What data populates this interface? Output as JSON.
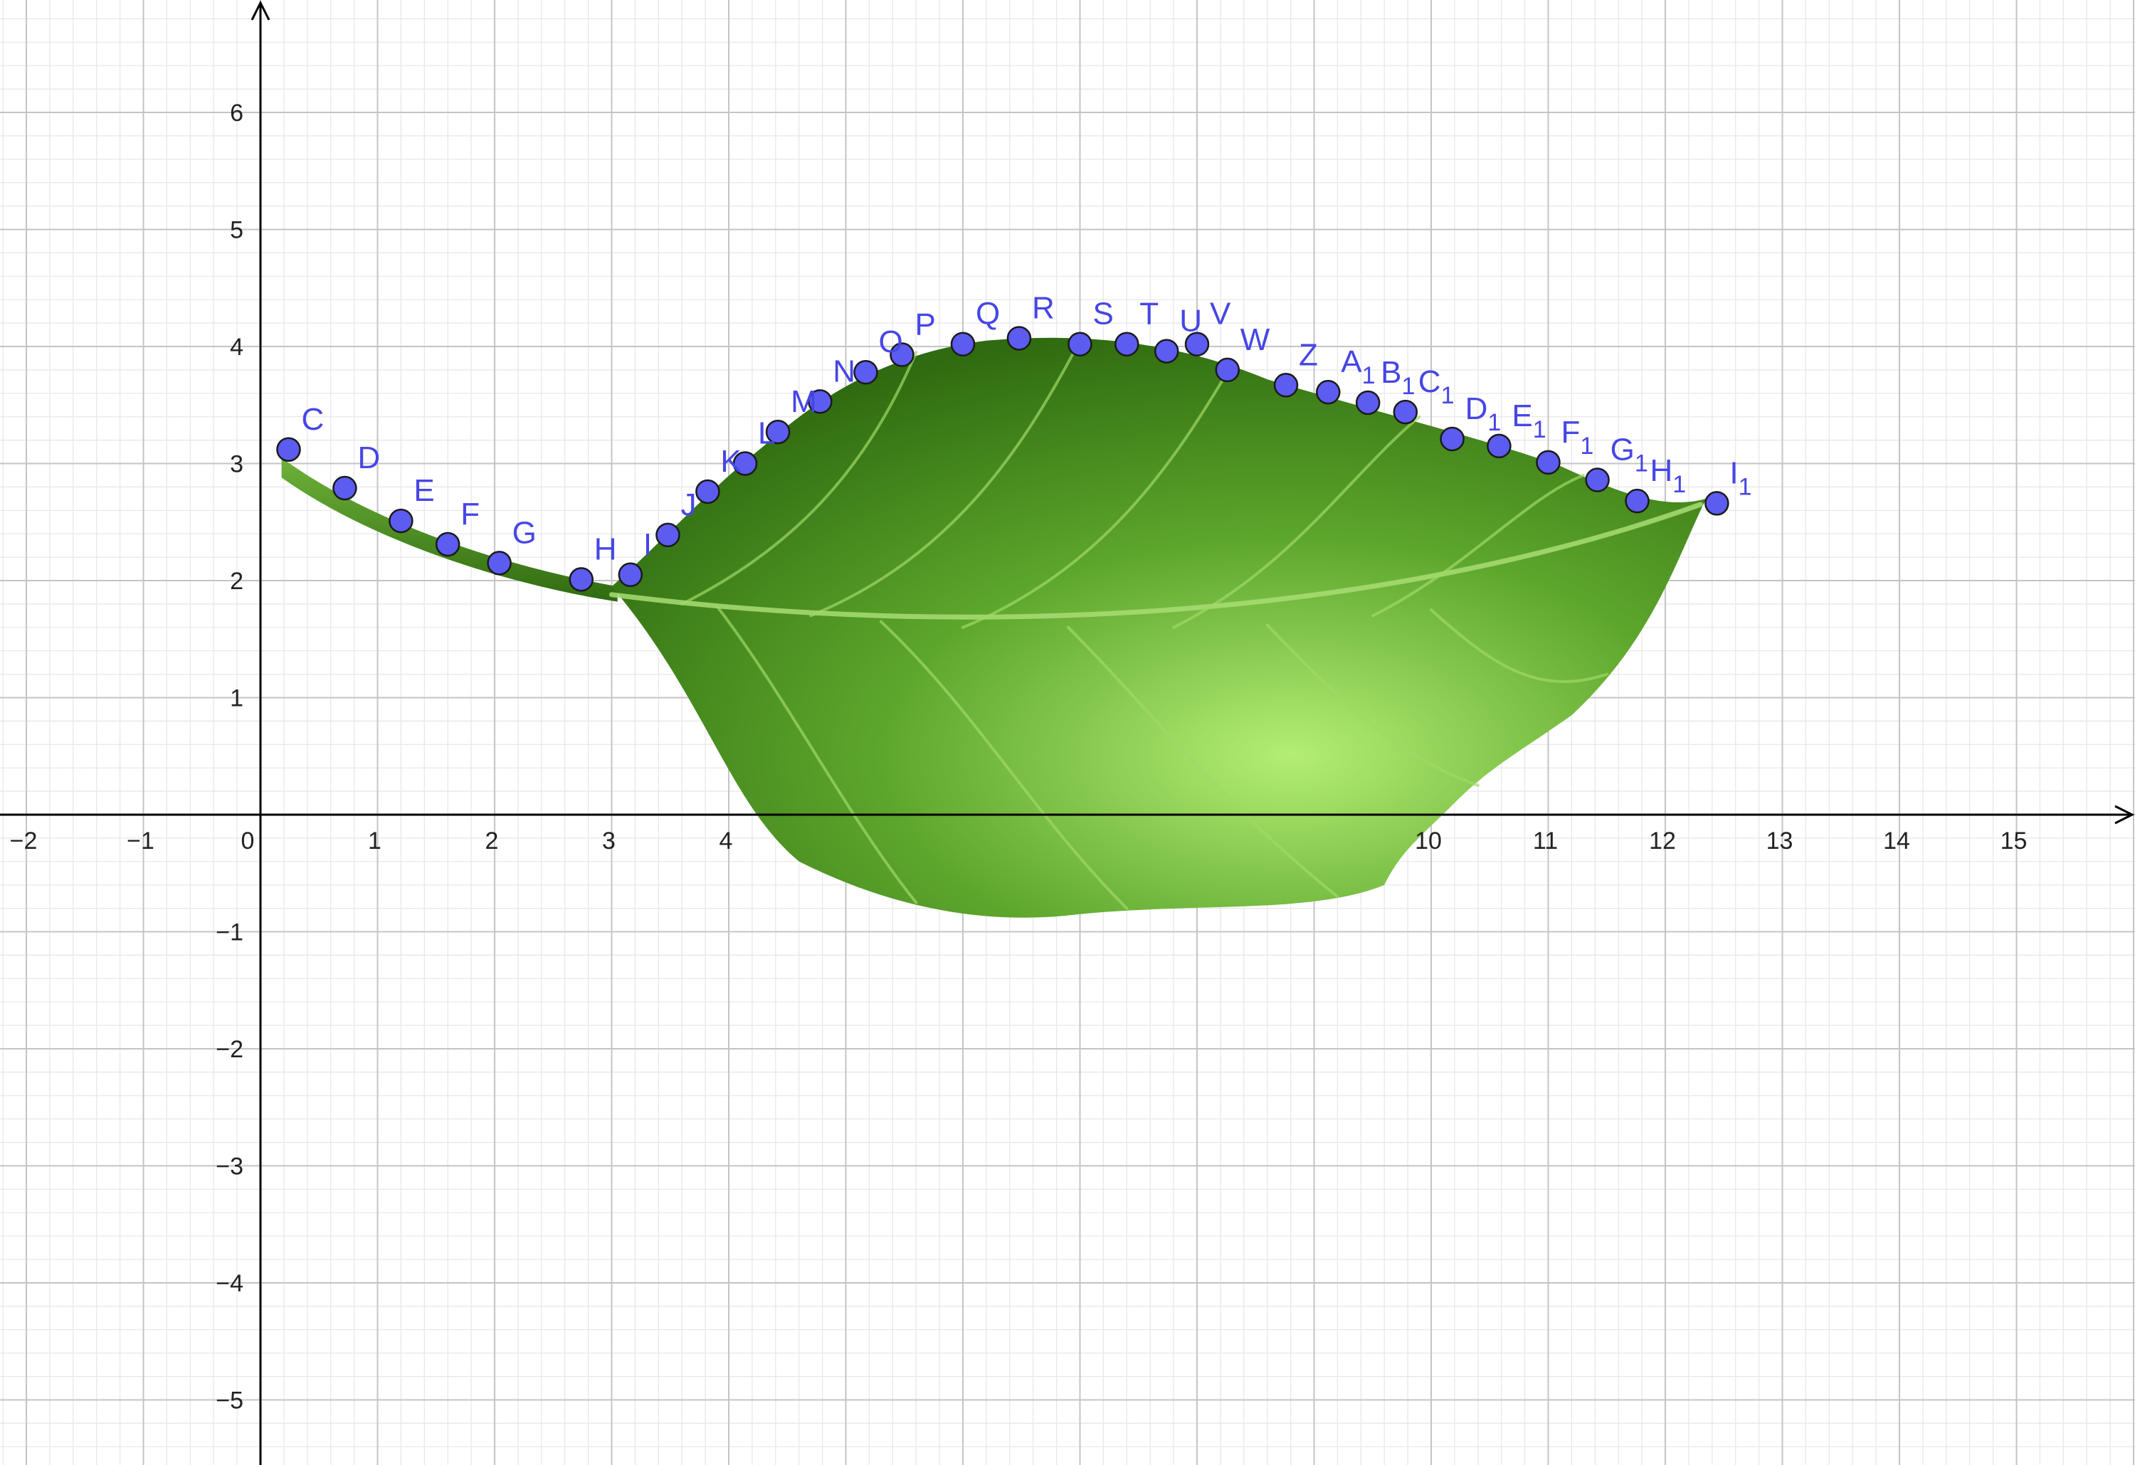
{
  "chart_data": {
    "type": "scatter",
    "title": "",
    "xlabel": "",
    "ylabel": "",
    "xlim": [
      -2.2,
      16.1
    ],
    "ylim": [
      -5.6,
      6.95
    ],
    "grid": true,
    "x_ticks": [
      -2,
      -1,
      0,
      1,
      2,
      3,
      4,
      10,
      11,
      12,
      13,
      14,
      15
    ],
    "x_tick_labels": [
      "−2",
      "−1",
      "0",
      "1",
      "2",
      "3",
      "4",
      "10",
      "11",
      "12",
      "13",
      "14",
      "15"
    ],
    "y_ticks": [
      -5,
      -4,
      -3,
      -2,
      -1,
      1,
      2,
      3,
      4,
      5,
      6
    ],
    "y_tick_labels": [
      "−5",
      "−4",
      "−3",
      "−2",
      "−1",
      "1",
      "2",
      "3",
      "4",
      "5",
      "6"
    ],
    "point_color": "#5c5cf0",
    "label_color": "#4646e6",
    "leaf_colors": {
      "light": "#b4ee74",
      "mid": "#5da62c",
      "dark": "#2f6b10"
    },
    "series": [
      {
        "points": [
          {
            "label": "C",
            "sub": "",
            "x": 0.24,
            "y": 3.12
          },
          {
            "label": "D",
            "sub": "",
            "x": 0.72,
            "y": 2.79
          },
          {
            "label": "E",
            "sub": "",
            "x": 1.2,
            "y": 2.51
          },
          {
            "label": "F",
            "sub": "",
            "x": 1.6,
            "y": 2.31
          },
          {
            "label": "G",
            "sub": "",
            "x": 2.04,
            "y": 2.15
          },
          {
            "label": "H",
            "sub": "",
            "x": 2.74,
            "y": 2.01
          },
          {
            "label": "I",
            "sub": "",
            "x": 3.16,
            "y": 2.05
          },
          {
            "label": "J",
            "sub": "",
            "x": 3.48,
            "y": 2.39
          },
          {
            "label": "K",
            "sub": "",
            "x": 3.82,
            "y": 2.76
          },
          {
            "label": "L",
            "sub": "",
            "x": 4.14,
            "y": 3.0
          },
          {
            "label": "M",
            "sub": "",
            "x": 4.42,
            "y": 3.27
          },
          {
            "label": "N",
            "sub": "",
            "x": 4.78,
            "y": 3.53
          },
          {
            "label": "O",
            "sub": "",
            "x": 5.17,
            "y": 3.78
          },
          {
            "label": "P",
            "sub": "",
            "x": 5.48,
            "y": 3.93
          },
          {
            "label": "Q",
            "sub": "",
            "x": 6.0,
            "y": 4.02
          },
          {
            "label": "R",
            "sub": "",
            "x": 6.48,
            "y": 4.07
          },
          {
            "label": "S",
            "sub": "",
            "x": 7.0,
            "y": 4.02
          },
          {
            "label": "T",
            "sub": "",
            "x": 7.4,
            "y": 4.02
          },
          {
            "label": "U",
            "sub": "",
            "x": 7.74,
            "y": 3.96
          },
          {
            "label": "V",
            "sub": "",
            "x": 8.0,
            "y": 4.02
          },
          {
            "label": "W",
            "sub": "",
            "x": 8.26,
            "y": 3.8
          },
          {
            "label": "Z",
            "sub": "",
            "x": 8.76,
            "y": 3.67
          },
          {
            "label": "A",
            "sub": "1",
            "x": 9.12,
            "y": 3.61
          },
          {
            "label": "B",
            "sub": "1",
            "x": 9.46,
            "y": 3.52
          },
          {
            "label": "C",
            "sub": "1",
            "x": 9.78,
            "y": 3.44
          },
          {
            "label": "D",
            "sub": "1",
            "x": 10.18,
            "y": 3.21
          },
          {
            "label": "E",
            "sub": "1",
            "x": 10.58,
            "y": 3.15
          },
          {
            "label": "F",
            "sub": "1",
            "x": 11.0,
            "y": 3.01
          },
          {
            "label": "G",
            "sub": "1",
            "x": 11.42,
            "y": 2.86
          },
          {
            "label": "H",
            "sub": "1",
            "x": 11.76,
            "y": 2.68
          },
          {
            "label": "I",
            "sub": "1",
            "x": 12.44,
            "y": 2.66
          }
        ]
      }
    ]
  }
}
